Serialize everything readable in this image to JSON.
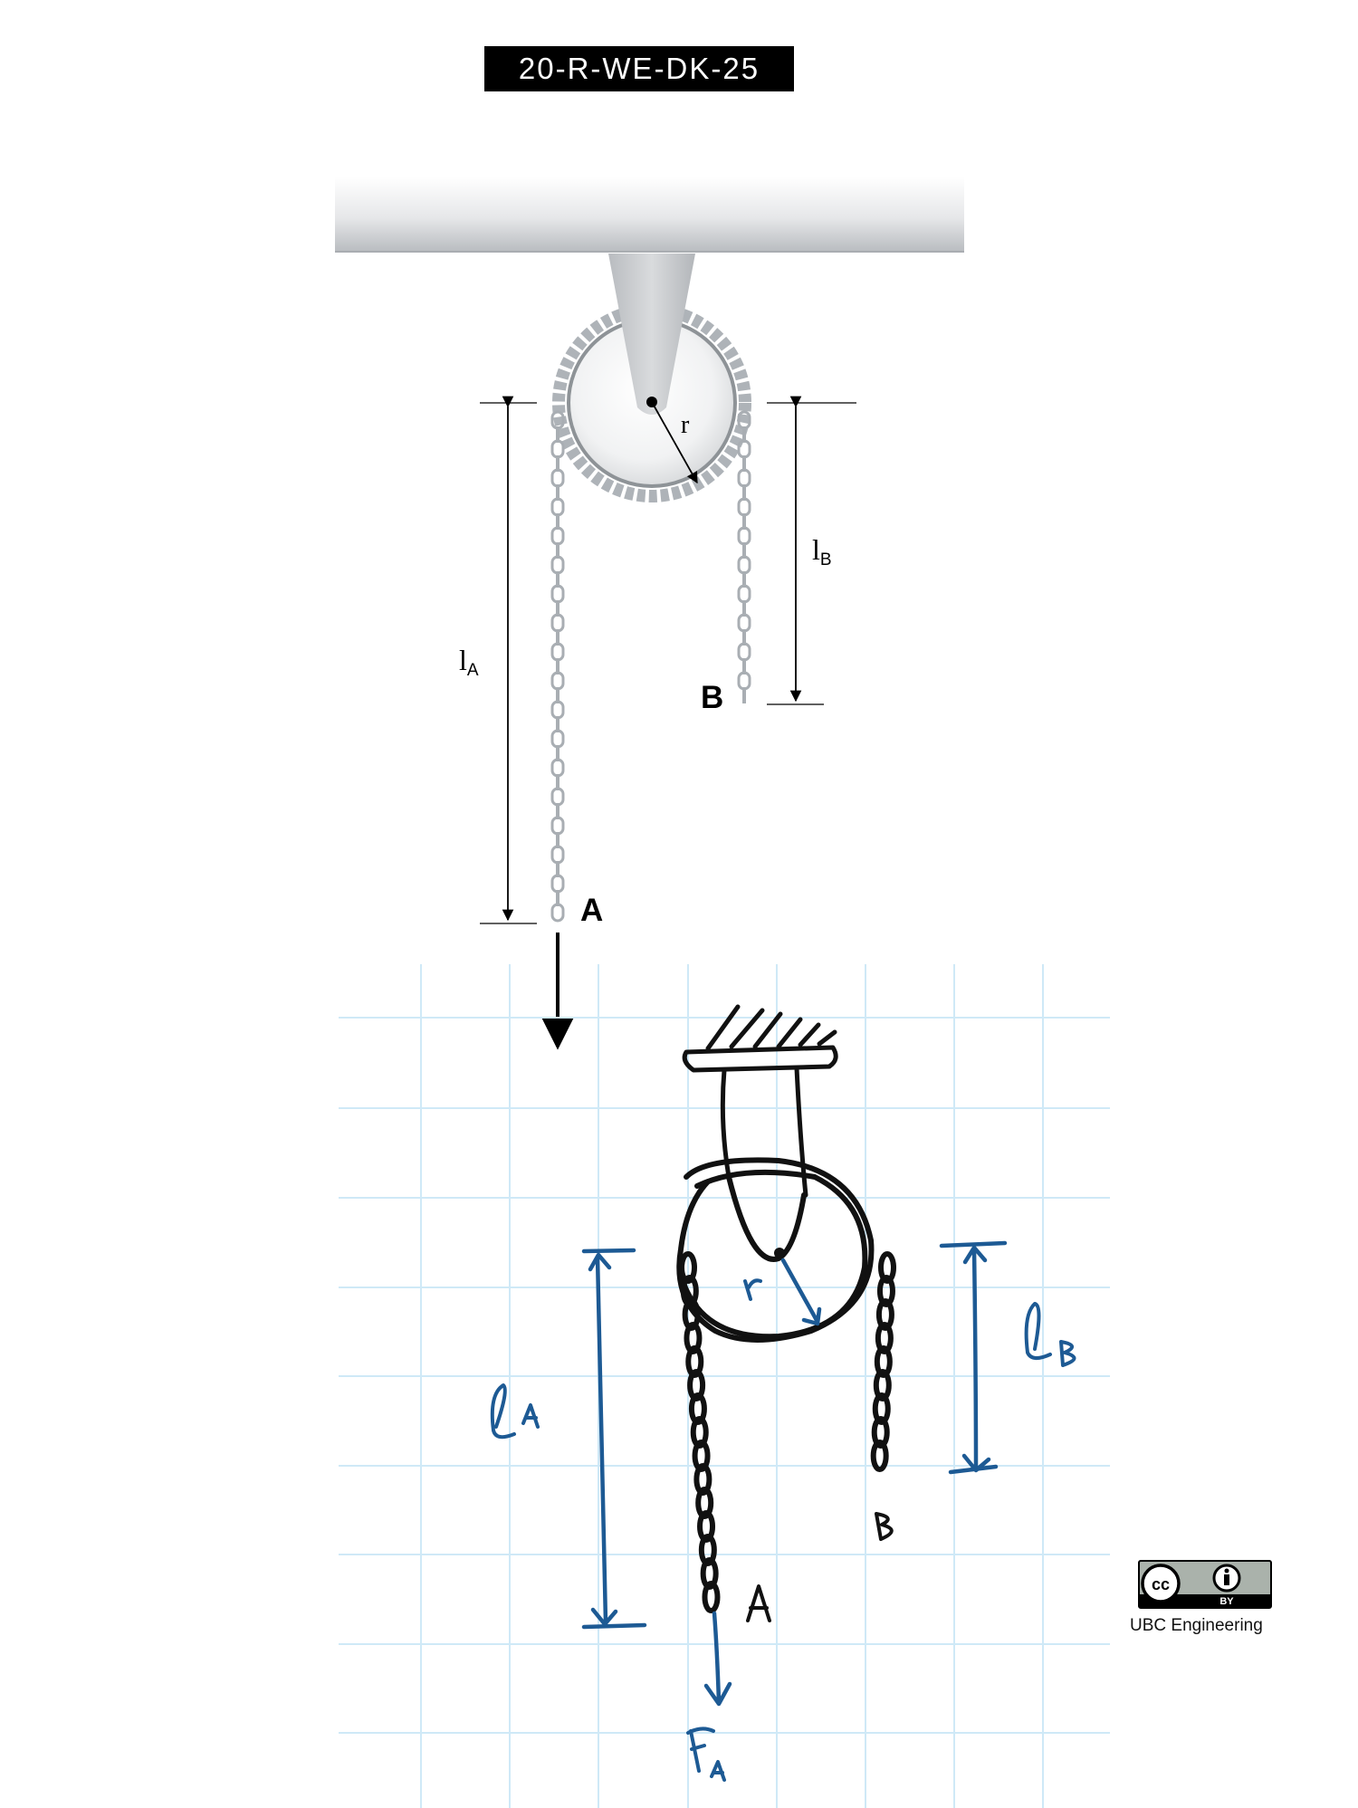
{
  "header": {
    "code": "20-R-WE-DK-25"
  },
  "diagram_top": {
    "radius_label": "r",
    "length_a": {
      "main": "l",
      "sub": "A"
    },
    "length_b": {
      "main": "l",
      "sub": "B"
    },
    "end_a": "A",
    "end_b": "B"
  },
  "sketch": {
    "radius_label": "r",
    "length_a_label": "lA",
    "length_b_label": "lB",
    "end_a": "A",
    "end_b": "B",
    "force_label": "FA",
    "ink_color": "#1d5a94",
    "grid_color": "#cfe9f7"
  },
  "license": {
    "cc": "cc",
    "by": "BY",
    "credit": "UBC Engineering"
  }
}
